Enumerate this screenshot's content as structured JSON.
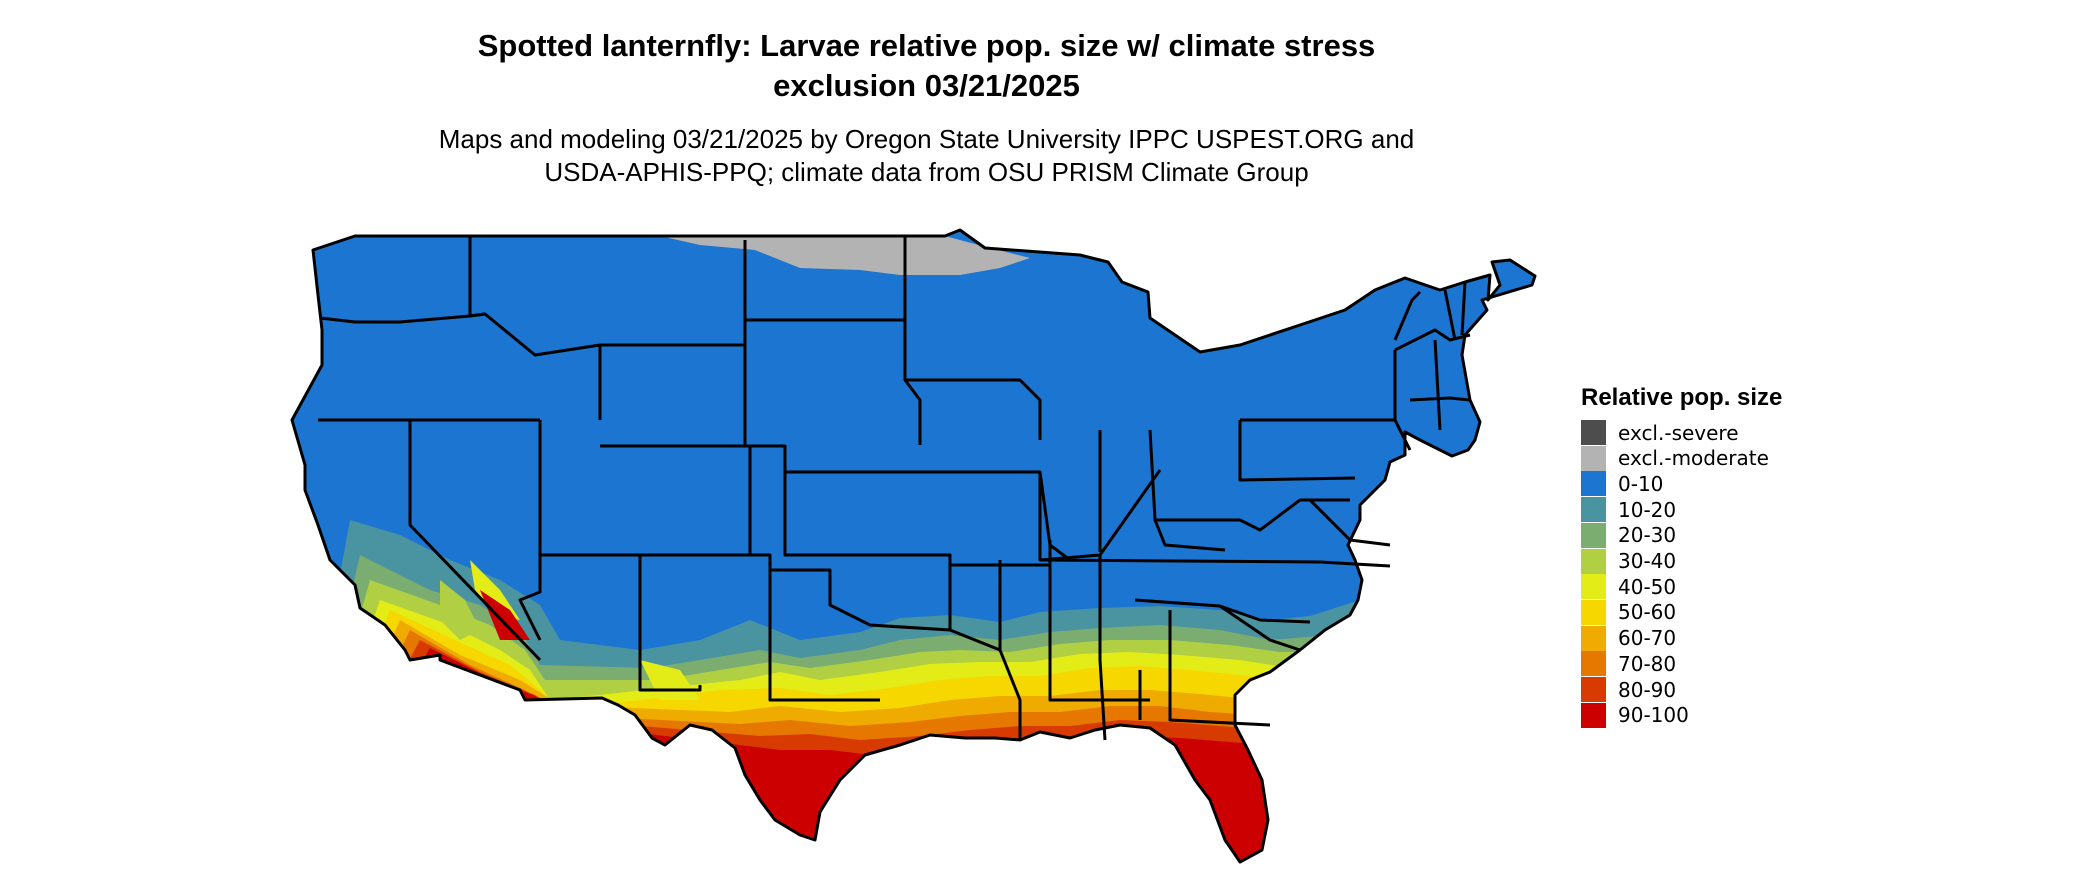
{
  "title_line1": "Spotted lanternfly: Larvae relative pop. size w/ climate stress",
  "title_line2": "exclusion 03/21/2025",
  "subtitle_line1": "Maps and modeling 03/21/2025 by Oregon State University IPPC USPEST.ORG and",
  "subtitle_line2": "USDA-APHIS-PPQ; climate data from OSU PRISM Climate Group",
  "legend": {
    "title": "Relative pop. size",
    "items": [
      {
        "label": "excl.-severe",
        "color": "#4d4d4d"
      },
      {
        "label": "excl.-moderate",
        "color": "#b3b3b3"
      },
      {
        "label": "0-10",
        "color": "#1c75d1"
      },
      {
        "label": "10-20",
        "color": "#4a93a0"
      },
      {
        "label": "20-30",
        "color": "#7bad70"
      },
      {
        "label": "30-40",
        "color": "#b1cf43"
      },
      {
        "label": "40-50",
        "color": "#e4ec18"
      },
      {
        "label": "50-60",
        "color": "#f6d800"
      },
      {
        "label": "60-70",
        "color": "#efab00"
      },
      {
        "label": "70-80",
        "color": "#e67800"
      },
      {
        "label": "80-90",
        "color": "#d83b00"
      },
      {
        "label": "90-100",
        "color": "#cc0000"
      }
    ]
  }
}
